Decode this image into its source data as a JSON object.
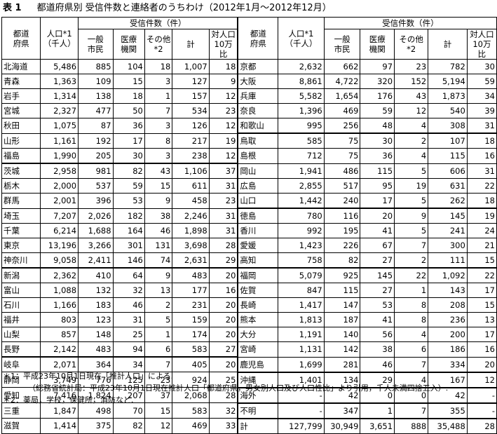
{
  "title_label": "表 1",
  "title_text": "都道府県別 受信件数と連絡者のうちわけ（2012年1月～2012年12月）",
  "headers": {
    "pref": "都道\n府県",
    "pop": "人口*1\n（千人）",
    "group": "受信件数（件）",
    "general": "一般\n市民",
    "medical": "医療\n機関",
    "other": "その他\n*2",
    "total": "計",
    "per": "対人口\n10万比"
  },
  "left_rows": [
    [
      "北海道",
      "5,486",
      "885",
      "104",
      "18",
      "1,007",
      "18"
    ],
    [
      "青森",
      "1,363",
      "109",
      "15",
      "3",
      "127",
      "9"
    ],
    [
      "岩手",
      "1,314",
      "138",
      "18",
      "1",
      "157",
      "12"
    ],
    [
      "宮城",
      "2,327",
      "477",
      "50",
      "7",
      "534",
      "23"
    ],
    [
      "秋田",
      "1,075",
      "87",
      "36",
      "3",
      "126",
      "12"
    ],
    [
      "山形",
      "1,161",
      "192",
      "17",
      "8",
      "217",
      "19"
    ],
    [
      "福島",
      "1,990",
      "205",
      "30",
      "3",
      "238",
      "12"
    ],
    [
      "茨城",
      "2,958",
      "981",
      "82",
      "43",
      "1,106",
      "37"
    ],
    [
      "栃木",
      "2,000",
      "537",
      "59",
      "15",
      "611",
      "31"
    ],
    [
      "群馬",
      "2,001",
      "396",
      "53",
      "9",
      "458",
      "23"
    ],
    [
      "埼玉",
      "7,207",
      "2,026",
      "182",
      "38",
      "2,246",
      "31"
    ],
    [
      "千葉",
      "6,214",
      "1,688",
      "164",
      "46",
      "1,898",
      "31"
    ],
    [
      "東京",
      "13,196",
      "3,266",
      "301",
      "131",
      "3,698",
      "28"
    ],
    [
      "神奈川",
      "9,058",
      "2,411",
      "146",
      "74",
      "2,631",
      "29"
    ],
    [
      "新潟",
      "2,362",
      "410",
      "64",
      "9",
      "483",
      "20"
    ],
    [
      "富山",
      "1,088",
      "132",
      "32",
      "13",
      "177",
      "16"
    ],
    [
      "石川",
      "1,166",
      "183",
      "46",
      "2",
      "231",
      "20"
    ],
    [
      "福井",
      "803",
      "123",
      "31",
      "5",
      "159",
      "20"
    ],
    [
      "山梨",
      "857",
      "148",
      "25",
      "1",
      "174",
      "20"
    ],
    [
      "長野",
      "2,142",
      "483",
      "94",
      "6",
      "583",
      "27"
    ],
    [
      "岐阜",
      "2,071",
      "364",
      "34",
      "7",
      "405",
      "20"
    ],
    [
      "静岡",
      "3,749",
      "776",
      "125",
      "23",
      "924",
      "25"
    ],
    [
      "愛知",
      "7,416",
      "1,824",
      "207",
      "37",
      "2,068",
      "28"
    ],
    [
      "三重",
      "1,847",
      "498",
      "70",
      "15",
      "583",
      "32"
    ],
    [
      "滋賀",
      "1,414",
      "375",
      "82",
      "12",
      "469",
      "33"
    ]
  ],
  "right_rows": [
    [
      "京都",
      "2,632",
      "662",
      "97",
      "23",
      "782",
      "30"
    ],
    [
      "大阪",
      "8,861",
      "4,722",
      "320",
      "152",
      "5,194",
      "59"
    ],
    [
      "兵庫",
      "5,582",
      "1,654",
      "176",
      "43",
      "1,873",
      "34"
    ],
    [
      "奈良",
      "1,396",
      "469",
      "59",
      "12",
      "540",
      "39"
    ],
    [
      "和歌山",
      "995",
      "256",
      "48",
      "4",
      "308",
      "31"
    ],
    [
      "鳥取",
      "585",
      "75",
      "30",
      "2",
      "107",
      "18"
    ],
    [
      "島根",
      "712",
      "75",
      "36",
      "4",
      "115",
      "16"
    ],
    [
      "岡山",
      "1,941",
      "486",
      "115",
      "5",
      "606",
      "31"
    ],
    [
      "広島",
      "2,855",
      "517",
      "95",
      "19",
      "631",
      "22"
    ],
    [
      "山口",
      "1,442",
      "240",
      "17",
      "5",
      "262",
      "18"
    ],
    [
      "徳島",
      "780",
      "116",
      "20",
      "9",
      "145",
      "19"
    ],
    [
      "香川",
      "992",
      "195",
      "41",
      "5",
      "241",
      "24"
    ],
    [
      "愛媛",
      "1,423",
      "226",
      "67",
      "7",
      "300",
      "21"
    ],
    [
      "高知",
      "758",
      "82",
      "27",
      "2",
      "111",
      "15"
    ],
    [
      "福岡",
      "5,079",
      "925",
      "145",
      "22",
      "1,092",
      "22"
    ],
    [
      "佐賀",
      "847",
      "115",
      "27",
      "1",
      "143",
      "17"
    ],
    [
      "長崎",
      "1,417",
      "147",
      "53",
      "8",
      "208",
      "15"
    ],
    [
      "熊本",
      "1,813",
      "187",
      "41",
      "8",
      "236",
      "13"
    ],
    [
      "大分",
      "1,191",
      "140",
      "56",
      "4",
      "200",
      "17"
    ],
    [
      "宮崎",
      "1,131",
      "142",
      "38",
      "6",
      "186",
      "16"
    ],
    [
      "鹿児島",
      "1,699",
      "281",
      "46",
      "7",
      "334",
      "20"
    ],
    [
      "沖縄",
      "1,401",
      "134",
      "29",
      "4",
      "167",
      "12"
    ],
    [
      "海外",
      "-",
      "42",
      "0",
      "0",
      "42",
      "-"
    ],
    [
      "不明",
      "-",
      "347",
      "1",
      "7",
      "355",
      "-"
    ],
    [
      "計",
      "127,799",
      "30,949",
      "3,651",
      "888",
      "35,488",
      "28"
    ]
  ],
  "left_gaps": [
    7,
    14,
    20
  ],
  "right_gaps": [
    5,
    10,
    14,
    21,
    22,
    23,
    24
  ],
  "notes": [
    "＊1：平成23年10月1日現在「推計人口」による.",
    "（総務省統計局：平成23年10月1日現在推計人口「都道府県，男女別人口及び人口性比」より引用，千人未満四捨五入）.",
    "＊2：薬局，学校，保健所，消防など."
  ]
}
